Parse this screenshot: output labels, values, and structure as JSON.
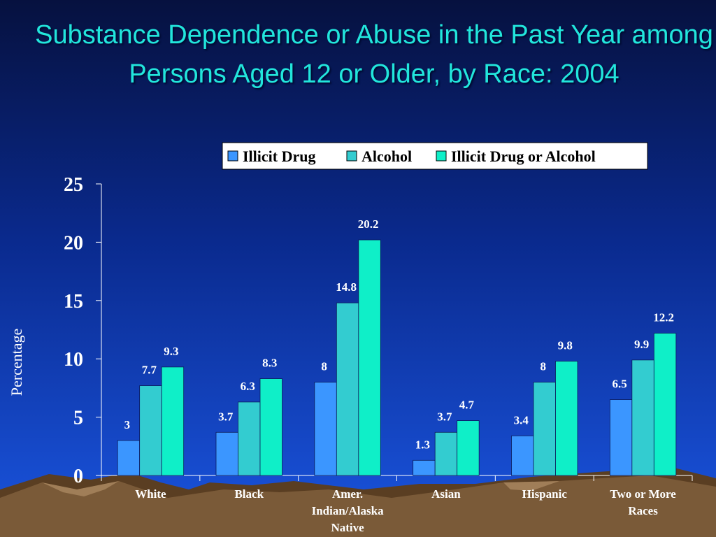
{
  "title": "Substance Dependence or Abuse in the Past Year among Persons Aged 12 or Older, by Race: 2004",
  "colors": {
    "title": "#22e6dc",
    "series": [
      "#3b96ff",
      "#33ccd0",
      "#0fefc8"
    ]
  },
  "chart_data": {
    "type": "bar",
    "ylabel": "Percentage",
    "xlabel": "",
    "ylim": [
      0,
      25
    ],
    "yticks": [
      0,
      5,
      10,
      15,
      20,
      25
    ],
    "legend_position": "top-right",
    "grid": false,
    "categories": [
      [
        "White"
      ],
      [
        "Black"
      ],
      [
        "Amer.",
        "Indian/Alaska",
        "Native"
      ],
      [
        "Asian"
      ],
      [
        "Hispanic"
      ],
      [
        "Two or More",
        "Races"
      ]
    ],
    "series": [
      {
        "name": "Illicit Drug",
        "values": [
          3,
          3.7,
          8,
          1.3,
          3.4,
          6.5
        ]
      },
      {
        "name": "Alcohol",
        "values": [
          7.7,
          6.3,
          14.8,
          3.7,
          8,
          9.9
        ]
      },
      {
        "name": "Illicit Drug or Alcohol",
        "values": [
          9.3,
          8.3,
          20.2,
          4.7,
          9.8,
          12.2
        ]
      }
    ]
  }
}
